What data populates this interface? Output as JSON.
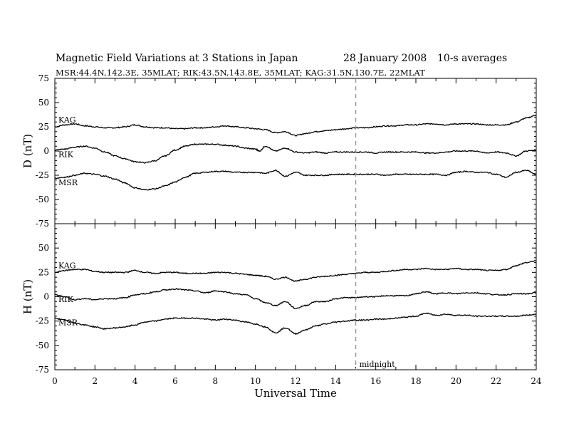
{
  "header": {
    "title": "Magnetic Field Variations at 3 Stations in Japan",
    "date": "28  January  2008",
    "averaging": "10-s averages",
    "stations_line": "MSR:44.4N,142.3E, 35MLAT;   RIK:43.5N,143.8E, 35MLAT;   KAG:31.5N,130.7E, 22MLAT"
  },
  "chart_data": {
    "type": "line",
    "xlabel": "Universal Time",
    "xlim": [
      0,
      24
    ],
    "x_ticks": [
      "0",
      "2",
      "4",
      "6",
      "8",
      "10",
      "12",
      "14",
      "16",
      "18",
      "20",
      "22",
      "24"
    ],
    "marker": {
      "x": 15,
      "label": "midnight",
      "style": "dashed"
    },
    "panels": [
      {
        "id": "D",
        "ylabel": "D (nT)",
        "ylim": [
          -75,
          75
        ],
        "y_ticks": [
          "75",
          "50",
          "25",
          "0",
          "-25",
          "-50",
          "-75"
        ],
        "series": [
          {
            "name": "KAG",
            "x": [
              0,
              0.5,
              1,
              1.5,
              2,
              2.5,
              3,
              3.5,
              4,
              4.5,
              5,
              5.5,
              6,
              6.5,
              7,
              7.5,
              8,
              8.5,
              9,
              9.5,
              10,
              10.5,
              11,
              11.5,
              12,
              12.5,
              13,
              13.5,
              14,
              14.5,
              15,
              15.5,
              16,
              16.5,
              17,
              17.5,
              18,
              18.5,
              19,
              19.5,
              20,
              20.5,
              21,
              21.5,
              22,
              22.5,
              23,
              23.5,
              24
            ],
            "y": [
              25,
              27,
              28,
              26,
              25,
              24,
              24,
              25,
              27,
              25,
              24,
              24,
              23,
              23,
              24,
              24,
              25,
              26,
              25,
              24,
              23,
              22,
              19,
              20,
              16,
              18,
              20,
              21,
              22,
              23,
              24,
              24,
              25,
              26,
              26,
              27,
              27,
              28,
              28,
              27,
              28,
              28,
              28,
              27,
              27,
              27,
              30,
              34,
              37
            ]
          },
          {
            "name": "RIK",
            "x": [
              0,
              0.5,
              1,
              1.5,
              2,
              2.5,
              3,
              3.5,
              4,
              4.5,
              5,
              5.5,
              6,
              6.5,
              7,
              7.5,
              8,
              8.5,
              9,
              9.5,
              10,
              10.2,
              10.5,
              11,
              11.5,
              12,
              12.5,
              13,
              13.5,
              14,
              14.5,
              15,
              15.5,
              16,
              16.5,
              17,
              17.5,
              18,
              18.5,
              19,
              19.5,
              20,
              20.5,
              21,
              21.5,
              22,
              22.5,
              23,
              23.5,
              24
            ],
            "y": [
              1,
              2,
              4,
              5,
              3,
              -1,
              -5,
              -8,
              -11,
              -12,
              -10,
              -5,
              1,
              5,
              7,
              7,
              7,
              6,
              5,
              3,
              2,
              0,
              5,
              0,
              3,
              -1,
              -2,
              -1,
              -2,
              -1,
              -1,
              -1,
              -1,
              -2,
              -1,
              -1,
              -1,
              -1,
              -2,
              -2,
              -1,
              0,
              0,
              0,
              -2,
              -1,
              -2,
              -5,
              0,
              1
            ]
          },
          {
            "name": "MSR",
            "x": [
              0,
              0.5,
              1,
              1.5,
              2,
              2.5,
              3,
              3.5,
              4,
              4.5,
              5,
              5.5,
              6,
              6.5,
              7,
              7.5,
              8,
              8.5,
              9,
              9.5,
              10,
              10.5,
              11,
              11.5,
              12,
              12.5,
              13,
              13.5,
              14,
              14.5,
              15,
              15.5,
              16,
              16.5,
              17,
              17.5,
              18,
              18.5,
              19,
              19.5,
              20,
              20.5,
              21,
              21.5,
              22,
              22.5,
              23,
              23.5,
              24
            ],
            "y": [
              -28,
              -27,
              -25,
              -23,
              -24,
              -26,
              -29,
              -33,
              -38,
              -40,
              -39,
              -36,
              -32,
              -27,
              -23,
              -22,
              -21,
              -21,
              -22,
              -22,
              -22,
              -23,
              -20,
              -26,
              -22,
              -25,
              -25,
              -25,
              -24,
              -24,
              -24,
              -24,
              -24,
              -25,
              -24,
              -24,
              -24,
              -24,
              -24,
              -25,
              -22,
              -21,
              -22,
              -22,
              -24,
              -27,
              -22,
              -20,
              -24
            ]
          }
        ]
      },
      {
        "id": "H",
        "ylabel": "H (nT)",
        "ylim": [
          -75,
          75
        ],
        "y_ticks": [
          "75",
          "50",
          "25",
          "0",
          "-25",
          "-50",
          "-75"
        ],
        "series": [
          {
            "name": "KAG",
            "x": [
              0,
              0.5,
              1,
              1.5,
              2,
              2.5,
              3,
              3.5,
              4,
              4.5,
              5,
              5.5,
              6,
              6.5,
              7,
              7.5,
              8,
              8.5,
              9,
              9.5,
              10,
              10.5,
              11,
              11.5,
              12,
              12.5,
              13,
              13.5,
              14,
              14.5,
              15,
              15.5,
              16,
              16.5,
              17,
              17.5,
              18,
              18.5,
              19,
              19.5,
              20,
              20.5,
              21,
              21.5,
              22,
              22.5,
              23,
              23.5,
              24
            ],
            "y": [
              25,
              27,
              28,
              28,
              26,
              25,
              25,
              25,
              27,
              25,
              24,
              25,
              25,
              24,
              24,
              24,
              25,
              25,
              24,
              23,
              22,
              21,
              18,
              20,
              16,
              18,
              20,
              21,
              22,
              23,
              24,
              25,
              25,
              26,
              27,
              28,
              28,
              29,
              28,
              28,
              29,
              28,
              28,
              27,
              27,
              28,
              32,
              35,
              37
            ]
          },
          {
            "name": "RIK",
            "x": [
              0,
              0.5,
              1,
              1.5,
              2,
              2.5,
              3,
              3.5,
              4,
              4.5,
              5,
              5.5,
              6,
              6.5,
              7,
              7.5,
              8,
              8.5,
              9,
              9.5,
              10,
              10.5,
              11,
              11.5,
              12,
              12.5,
              13,
              13.5,
              14,
              14.5,
              15,
              15.5,
              16,
              16.5,
              17,
              17.5,
              18,
              18.5,
              19,
              19.5,
              20,
              20.5,
              21,
              21.5,
              22,
              22.5,
              23,
              23.5,
              24
            ],
            "y": [
              2,
              0,
              -3,
              -2,
              -3,
              -2,
              -2,
              -1,
              2,
              3,
              5,
              7,
              8,
              7,
              6,
              4,
              6,
              5,
              3,
              2,
              -2,
              -6,
              -9,
              -5,
              -12,
              -9,
              -5,
              -5,
              -2,
              -1,
              -1,
              0,
              0,
              1,
              1,
              1,
              3,
              5,
              3,
              4,
              3,
              4,
              4,
              3,
              2,
              2,
              3,
              3,
              4
            ]
          },
          {
            "name": "MSR",
            "x": [
              0,
              0.5,
              1,
              1.5,
              2,
              2.5,
              3,
              3.5,
              4,
              4.5,
              5,
              5.5,
              6,
              6.5,
              7,
              7.5,
              8,
              8.5,
              9,
              9.5,
              10,
              10.5,
              11,
              11.5,
              12,
              12.5,
              13,
              13.5,
              14,
              14.5,
              15,
              15.5,
              16,
              16.5,
              17,
              17.5,
              18,
              18.5,
              19,
              19.5,
              20,
              20.5,
              21,
              21.5,
              22,
              22.5,
              23,
              23.5,
              24
            ],
            "y": [
              -22,
              -24,
              -27,
              -29,
              -31,
              -33,
              -32,
              -31,
              -29,
              -26,
              -25,
              -23,
              -22,
              -22,
              -22,
              -23,
              -24,
              -23,
              -24,
              -26,
              -28,
              -31,
              -37,
              -32,
              -38,
              -34,
              -30,
              -28,
              -26,
              -25,
              -24,
              -24,
              -23,
              -23,
              -22,
              -21,
              -20,
              -17,
              -19,
              -18,
              -19,
              -19,
              -20,
              -20,
              -20,
              -20,
              -20,
              -19,
              -18
            ]
          }
        ]
      }
    ]
  }
}
